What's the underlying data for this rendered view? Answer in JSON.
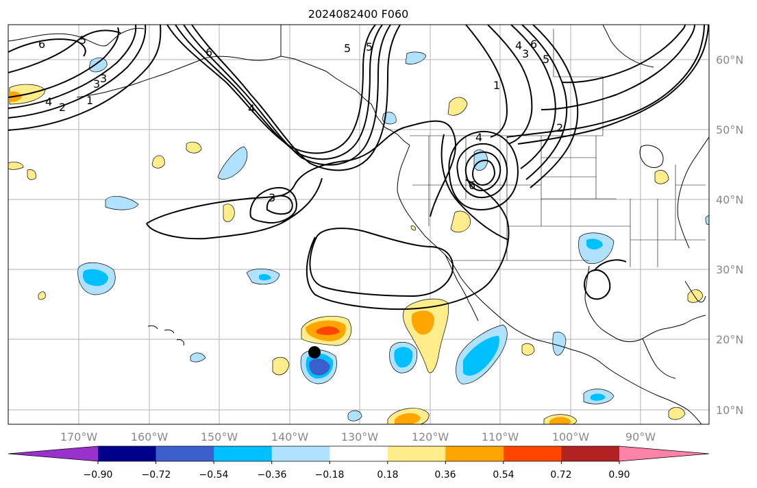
{
  "title": "2024082400 F060",
  "map": {
    "lon_labels": [
      "170°W",
      "160°W",
      "150°W",
      "140°W",
      "130°W",
      "120°W",
      "110°W",
      "100°W",
      "90°W"
    ],
    "lat_labels": [
      "60°N",
      "50°N",
      "40°N",
      "30°N",
      "20°N",
      "10°N"
    ],
    "contour_labels": [
      "6",
      "5",
      "3",
      "2",
      "1",
      "6",
      "5",
      "4",
      "3",
      "4",
      "6",
      "5",
      "1",
      "4",
      "3",
      "2",
      "4",
      "5",
      "6",
      "3"
    ],
    "marker": "black-dot-storm-center"
  },
  "colorbar": {
    "ticks": [
      "−0.90",
      "−0.72",
      "−0.54",
      "−0.36",
      "−0.18",
      "0.18",
      "0.36",
      "0.54",
      "0.72",
      "0.90"
    ],
    "colors": [
      "#9932CC",
      "#00008B",
      "#3A5FCD",
      "#00BFFF",
      "#B0E2FF",
      "#FFFFFF",
      "#FFEC8B",
      "#FFA500",
      "#FF4500",
      "#B22222",
      "#FF83A8"
    ]
  }
}
